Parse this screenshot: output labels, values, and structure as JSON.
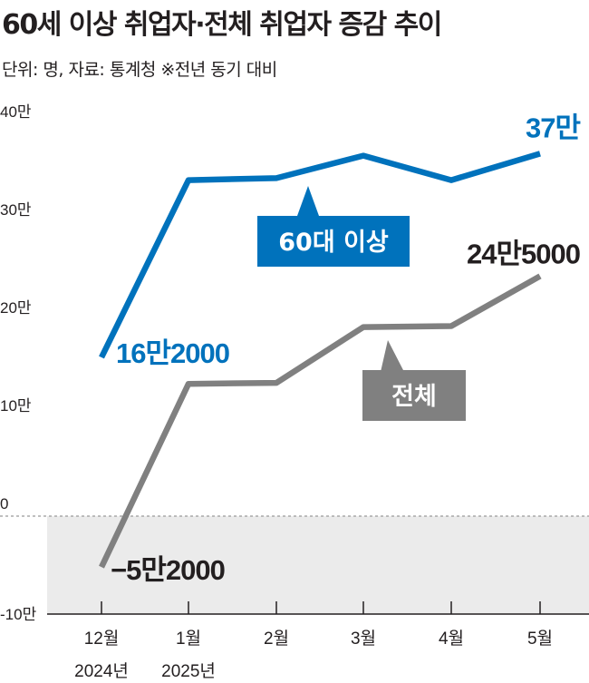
{
  "title": "60세 이상 취업자·전체 취업자 증감 추이",
  "subtitle": "단위: 명, 자료: 통계청 ※전년 동기 대비",
  "colors": {
    "blue": "#0072bc",
    "gray": "#808080",
    "negative_band": "#ebebeb"
  },
  "chart_data": {
    "type": "line",
    "title": "60세 이상 취업자·전체 취업자 증감 추이",
    "unit": "명",
    "source": "통계청",
    "note": "전년 동기 대비",
    "categories": [
      "12월",
      "1월",
      "2월",
      "3월",
      "4월",
      "5월"
    ],
    "category_years": [
      "2024년",
      "2025년",
      "",
      "",
      "",
      ""
    ],
    "ylim": [
      -100000,
      400000
    ],
    "y_ticks": [
      {
        "value": 400000,
        "label": "40만"
      },
      {
        "value": 300000,
        "label": "30만"
      },
      {
        "value": 200000,
        "label": "20만"
      },
      {
        "value": 100000,
        "label": "10만"
      },
      {
        "value": 0,
        "label": "0"
      },
      {
        "value": -100000,
        "label": "-10만"
      }
    ],
    "series": [
      {
        "name": "60대 이상",
        "color": "#0072bc",
        "values": [
          162000,
          343000,
          345000,
          368000,
          343000,
          370000
        ],
        "labels": {
          "first": "16만2000",
          "last": "37만"
        }
      },
      {
        "name": "전체",
        "color": "#808080",
        "values": [
          -52000,
          135000,
          136000,
          193000,
          194000,
          245000
        ],
        "labels": {
          "first": "−5만2000",
          "last": "24만5000"
        }
      }
    ]
  }
}
